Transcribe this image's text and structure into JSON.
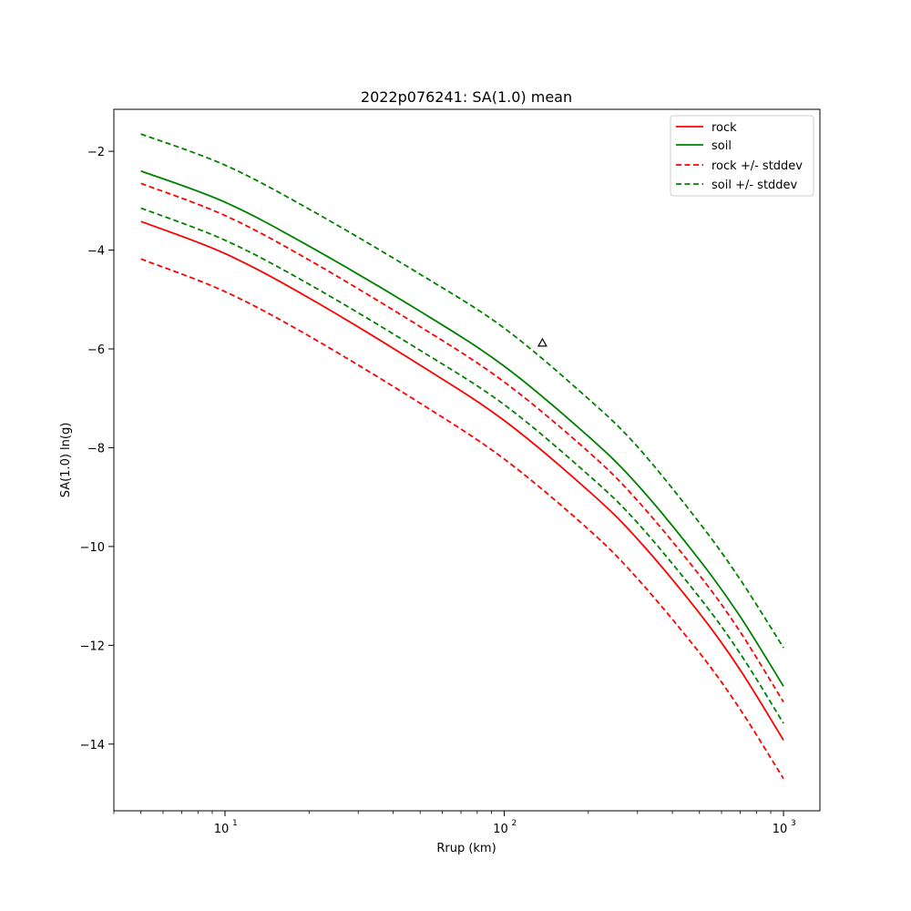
{
  "chart_data": {
    "type": "line",
    "title": "2022p076241: SA(1.0) mean",
    "xlabel": "Rrup (km)",
    "ylabel": "SA(1.0) ln(g)",
    "xscale": "log",
    "xlim": [
      4.0,
      1350
    ],
    "ylim": [
      -15.35,
      -1.15
    ],
    "x_ticks": [
      10,
      100,
      1000
    ],
    "x_tick_labels": [
      {
        "base": "10",
        "exp": "1"
      },
      {
        "base": "10",
        "exp": "2"
      },
      {
        "base": "10",
        "exp": "3"
      }
    ],
    "y_ticks": [
      -14,
      -12,
      -10,
      -8,
      -6,
      -4,
      -2
    ],
    "y_tick_labels": [
      "−14",
      "−12",
      "−10",
      "−8",
      "−6",
      "−4",
      "−2"
    ],
    "grid": false,
    "legend": {
      "position": "top-right",
      "entries": [
        {
          "label": "rock",
          "color": "#ff0000",
          "dash": false
        },
        {
          "label": "soil",
          "color": "#008000",
          "dash": false
        },
        {
          "label": "rock +/- stddev",
          "color": "#ff0000",
          "dash": true
        },
        {
          "label": "soil +/- stddev",
          "color": "#008000",
          "dash": true
        }
      ]
    },
    "x": [
      5,
      10,
      20,
      50,
      100,
      200,
      300,
      500,
      700,
      1000
    ],
    "series": [
      {
        "name": "rock",
        "color": "#ff0000",
        "dash": false,
        "values": [
          -3.42,
          -4.07,
          -4.97,
          -6.33,
          -7.45,
          -8.87,
          -9.85,
          -11.35,
          -12.5,
          -13.92
        ]
      },
      {
        "name": "soil",
        "color": "#008000",
        "dash": false,
        "values": [
          -2.4,
          -3.03,
          -3.92,
          -5.24,
          -6.35,
          -7.77,
          -8.75,
          -10.27,
          -11.42,
          -12.83
        ]
      },
      {
        "color": "#ff0000",
        "dash": true,
        "values": [
          -2.65,
          -3.3,
          -4.2,
          -5.55,
          -6.67,
          -8.08,
          -9.07,
          -10.58,
          -11.73,
          -13.15
        ]
      },
      {
        "color": "#ff0000",
        "dash": true,
        "values": [
          -4.18,
          -4.84,
          -5.74,
          -7.1,
          -8.23,
          -9.65,
          -10.65,
          -12.15,
          -13.3,
          -14.7
        ]
      },
      {
        "color": "#008000",
        "dash": true,
        "values": [
          -1.65,
          -2.28,
          -3.17,
          -4.49,
          -5.58,
          -7.01,
          -7.98,
          -9.52,
          -10.67,
          -12.05
        ]
      },
      {
        "color": "#008000",
        "dash": true,
        "values": [
          -3.15,
          -3.8,
          -4.69,
          -6.03,
          -7.13,
          -8.55,
          -9.52,
          -11.03,
          -12.17,
          -13.58
        ]
      }
    ],
    "markers": [
      {
        "shape": "triangle",
        "x": 137,
        "y": -5.88,
        "color": "#000000"
      }
    ]
  }
}
